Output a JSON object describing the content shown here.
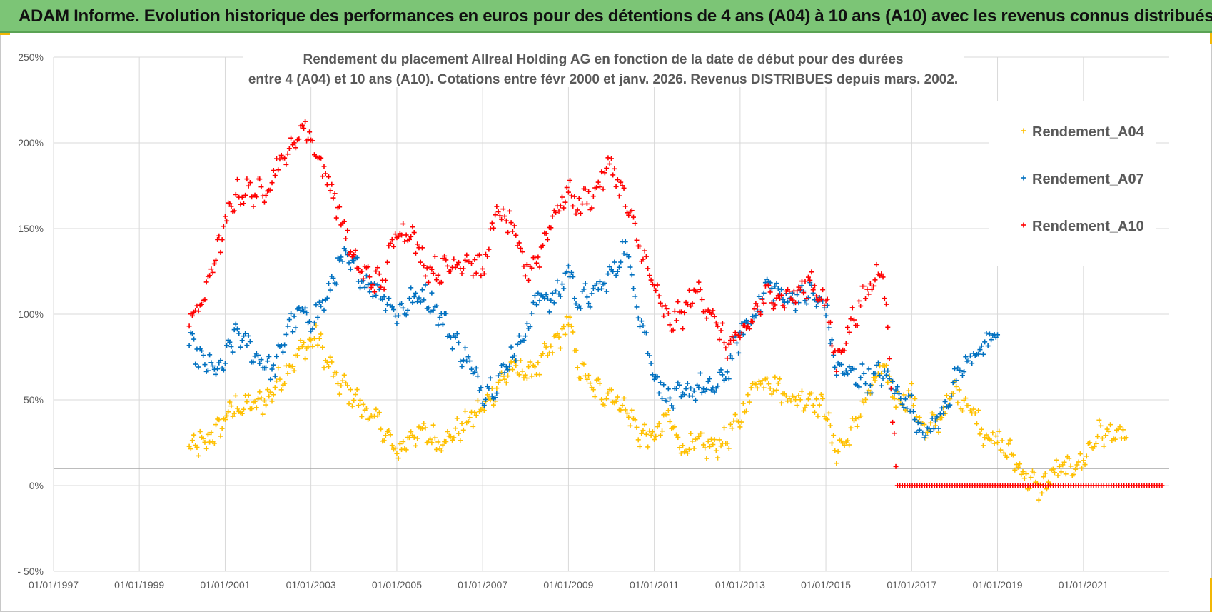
{
  "header": {
    "title": "ADAM Informe. Evolution historique des performances en euros pour des détentions de 4 ans (A04) à 10 ans (A10) avec les revenus connus distribués"
  },
  "colors": {
    "header_bg": "#7cc576",
    "corner_accent": "#f2b705",
    "Rendement_A04": "#ffc000",
    "Rendement_A07": "#0070c0",
    "Rendement_A10": "#ff0000"
  },
  "chart_data": {
    "type": "scatter",
    "marker": "+",
    "title_lines": [
      "Rendement du placement Allreal Holding AG en fonction de la date de début pour des durées",
      "entre 4 (A04) et 10 ans (A10). Cotations entre févr 2000 et janv. 2026. Revenus DISTRIBUES depuis mars. 2002."
    ],
    "xlabel": "",
    "ylabel": "",
    "x_type": "date",
    "xlim": [
      "1997-01-01",
      "2023-01-01"
    ],
    "x_tick_labels": [
      "01/01/1997",
      "01/01/1999",
      "01/01/2001",
      "01/01/2003",
      "01/01/2005",
      "01/01/2007",
      "01/01/2009",
      "01/01/2011",
      "01/01/2013",
      "01/01/2015",
      "01/01/2017",
      "01/01/2019",
      "01/01/2021"
    ],
    "ylim": [
      -50,
      250
    ],
    "y_tick_labels": [
      "250%",
      "200%",
      "150%",
      "100%",
      "50%",
      "0%",
      "- 50%"
    ],
    "y_tick_values": [
      250,
      200,
      150,
      100,
      50,
      0,
      -50
    ],
    "reference_line_y": 10,
    "grid": "vertical and horizontal",
    "legend_position": "top-right",
    "series": [
      {
        "name": "Rendement_A04",
        "color": "#ffc000",
        "points": [
          [
            "2000-03-01",
            21
          ],
          [
            "2000-06-01",
            24
          ],
          [
            "2000-10-01",
            28
          ],
          [
            "2001-01-01",
            40
          ],
          [
            "2001-04-01",
            46
          ],
          [
            "2001-08-01",
            47
          ],
          [
            "2001-12-01",
            48
          ],
          [
            "2002-03-01",
            58
          ],
          [
            "2002-07-01",
            70
          ],
          [
            "2002-11-01",
            80
          ],
          [
            "2003-01-01",
            86
          ],
          [
            "2003-03-01",
            85
          ],
          [
            "2003-06-01",
            70
          ],
          [
            "2003-09-01",
            60
          ],
          [
            "2004-01-01",
            52
          ],
          [
            "2004-05-01",
            42
          ],
          [
            "2004-09-01",
            34
          ],
          [
            "2005-01-01",
            18
          ],
          [
            "2005-05-01",
            30
          ],
          [
            "2005-09-01",
            30
          ],
          [
            "2006-01-01",
            26
          ],
          [
            "2006-05-01",
            30
          ],
          [
            "2006-09-01",
            38
          ],
          [
            "2007-01-01",
            45
          ],
          [
            "2007-05-01",
            58
          ],
          [
            "2007-09-01",
            68
          ],
          [
            "2008-01-01",
            66
          ],
          [
            "2008-05-01",
            70
          ],
          [
            "2008-09-01",
            82
          ],
          [
            "2009-01-01",
            95
          ],
          [
            "2009-04-01",
            70
          ],
          [
            "2009-08-01",
            56
          ],
          [
            "2010-01-01",
            53
          ],
          [
            "2010-05-01",
            45
          ],
          [
            "2010-09-01",
            30
          ],
          [
            "2011-01-01",
            28
          ],
          [
            "2011-05-01",
            40
          ],
          [
            "2011-09-01",
            22
          ],
          [
            "2012-01-01",
            24
          ],
          [
            "2012-05-01",
            22
          ],
          [
            "2012-09-01",
            27
          ],
          [
            "2013-01-01",
            38
          ],
          [
            "2013-05-01",
            60
          ],
          [
            "2013-09-01",
            63
          ],
          [
            "2014-01-01",
            54
          ],
          [
            "2014-05-01",
            50
          ],
          [
            "2014-09-01",
            52
          ],
          [
            "2015-01-01",
            42
          ],
          [
            "2015-04-01",
            20
          ],
          [
            "2015-08-01",
            30
          ],
          [
            "2016-01-01",
            55
          ],
          [
            "2016-05-01",
            68
          ],
          [
            "2016-09-01",
            50
          ],
          [
            "2017-01-01",
            52
          ],
          [
            "2017-05-01",
            30
          ],
          [
            "2017-09-01",
            40
          ],
          [
            "2018-01-01",
            55
          ],
          [
            "2018-05-01",
            48
          ],
          [
            "2018-09-01",
            32
          ],
          [
            "2019-01-01",
            25
          ],
          [
            "2019-05-01",
            18
          ],
          [
            "2019-09-01",
            5
          ],
          [
            "2020-01-01",
            -2
          ],
          [
            "2020-05-01",
            8
          ],
          [
            "2020-09-01",
            10
          ],
          [
            "2021-01-01",
            15
          ],
          [
            "2021-05-01",
            30
          ],
          [
            "2021-09-01",
            30
          ],
          [
            "2022-01-01",
            28
          ]
        ]
      },
      {
        "name": "Rendement_A07",
        "color": "#0070c0",
        "points": [
          [
            "2000-03-01",
            82
          ],
          [
            "2000-06-01",
            75
          ],
          [
            "2000-10-01",
            65
          ],
          [
            "2001-01-01",
            72
          ],
          [
            "2001-04-01",
            90
          ],
          [
            "2001-08-01",
            80
          ],
          [
            "2001-12-01",
            70
          ],
          [
            "2002-03-01",
            68
          ],
          [
            "2002-07-01",
            95
          ],
          [
            "2002-11-01",
            100
          ],
          [
            "2003-01-01",
            98
          ],
          [
            "2003-03-01",
            100
          ],
          [
            "2003-06-01",
            112
          ],
          [
            "2003-09-01",
            132
          ],
          [
            "2004-01-01",
            128
          ],
          [
            "2004-05-01",
            118
          ],
          [
            "2004-09-01",
            112
          ],
          [
            "2005-01-01",
            100
          ],
          [
            "2005-05-01",
            108
          ],
          [
            "2005-09-01",
            112
          ],
          [
            "2006-01-01",
            100
          ],
          [
            "2006-05-01",
            85
          ],
          [
            "2006-09-01",
            72
          ],
          [
            "2007-01-01",
            55
          ],
          [
            "2007-05-01",
            60
          ],
          [
            "2007-09-01",
            75
          ],
          [
            "2008-01-01",
            90
          ],
          [
            "2008-05-01",
            112
          ],
          [
            "2008-09-01",
            108
          ],
          [
            "2009-01-01",
            125
          ],
          [
            "2009-04-01",
            108
          ],
          [
            "2009-08-01",
            112
          ],
          [
            "2010-01-01",
            122
          ],
          [
            "2010-05-01",
            140
          ],
          [
            "2010-09-01",
            100
          ],
          [
            "2011-01-01",
            65
          ],
          [
            "2011-05-01",
            50
          ],
          [
            "2011-09-01",
            52
          ],
          [
            "2012-01-01",
            58
          ],
          [
            "2012-05-01",
            55
          ],
          [
            "2012-09-01",
            65
          ],
          [
            "2013-01-01",
            88
          ],
          [
            "2013-05-01",
            100
          ],
          [
            "2013-09-01",
            118
          ],
          [
            "2014-01-01",
            110
          ],
          [
            "2014-05-01",
            110
          ],
          [
            "2014-09-01",
            112
          ],
          [
            "2015-01-01",
            102
          ],
          [
            "2015-04-01",
            68
          ],
          [
            "2015-08-01",
            65
          ],
          [
            "2016-01-01",
            62
          ],
          [
            "2016-05-01",
            65
          ],
          [
            "2016-09-01",
            55
          ],
          [
            "2017-01-01",
            45
          ],
          [
            "2017-05-01",
            30
          ],
          [
            "2017-09-01",
            40
          ],
          [
            "2018-01-01",
            60
          ],
          [
            "2018-05-01",
            72
          ],
          [
            "2018-09-01",
            82
          ],
          [
            "2019-01-01",
            88
          ]
        ]
      },
      {
        "name": "Rendement_A10",
        "color": "#ff0000",
        "points": [
          [
            "2000-03-01",
            98
          ],
          [
            "2000-06-01",
            104
          ],
          [
            "2000-10-01",
            130
          ],
          [
            "2001-01-01",
            152
          ],
          [
            "2001-04-01",
            170
          ],
          [
            "2001-08-01",
            172
          ],
          [
            "2001-12-01",
            170
          ],
          [
            "2002-03-01",
            185
          ],
          [
            "2002-07-01",
            195
          ],
          [
            "2002-11-01",
            210
          ],
          [
            "2003-01-01",
            205
          ],
          [
            "2003-03-01",
            190
          ],
          [
            "2003-06-01",
            178
          ],
          [
            "2003-09-01",
            160
          ],
          [
            "2004-01-01",
            130
          ],
          [
            "2004-05-01",
            122
          ],
          [
            "2004-09-01",
            118
          ],
          [
            "2005-01-01",
            150
          ],
          [
            "2005-05-01",
            148
          ],
          [
            "2005-09-01",
            128
          ],
          [
            "2006-01-01",
            125
          ],
          [
            "2006-05-01",
            130
          ],
          [
            "2006-09-01",
            132
          ],
          [
            "2007-01-01",
            125
          ],
          [
            "2007-05-01",
            160
          ],
          [
            "2007-09-01",
            152
          ],
          [
            "2008-01-01",
            125
          ],
          [
            "2008-05-01",
            135
          ],
          [
            "2008-09-01",
            160
          ],
          [
            "2009-01-01",
            170
          ],
          [
            "2009-04-01",
            165
          ],
          [
            "2009-08-01",
            170
          ],
          [
            "2010-01-01",
            188
          ],
          [
            "2010-05-01",
            165
          ],
          [
            "2010-09-01",
            140
          ],
          [
            "2011-01-01",
            115
          ],
          [
            "2011-05-01",
            95
          ],
          [
            "2011-09-01",
            100
          ],
          [
            "2012-01-01",
            115
          ],
          [
            "2012-05-01",
            100
          ],
          [
            "2012-09-01",
            82
          ],
          [
            "2013-01-01",
            85
          ],
          [
            "2013-05-01",
            100
          ],
          [
            "2013-09-01",
            112
          ],
          [
            "2014-01-01",
            110
          ],
          [
            "2014-05-01",
            112
          ],
          [
            "2014-09-01",
            120
          ],
          [
            "2015-01-01",
            105
          ],
          [
            "2015-04-01",
            72
          ],
          [
            "2015-08-01",
            95
          ],
          [
            "2016-01-01",
            115
          ],
          [
            "2016-05-01",
            130
          ],
          [
            "2016-09-01",
            0
          ],
          [
            "2017-06-01",
            0
          ],
          [
            "2018-06-01",
            0
          ],
          [
            "2019-06-01",
            0
          ],
          [
            "2020-06-01",
            0
          ],
          [
            "2021-06-01",
            0
          ],
          [
            "2022-11-01",
            0
          ]
        ]
      }
    ]
  }
}
